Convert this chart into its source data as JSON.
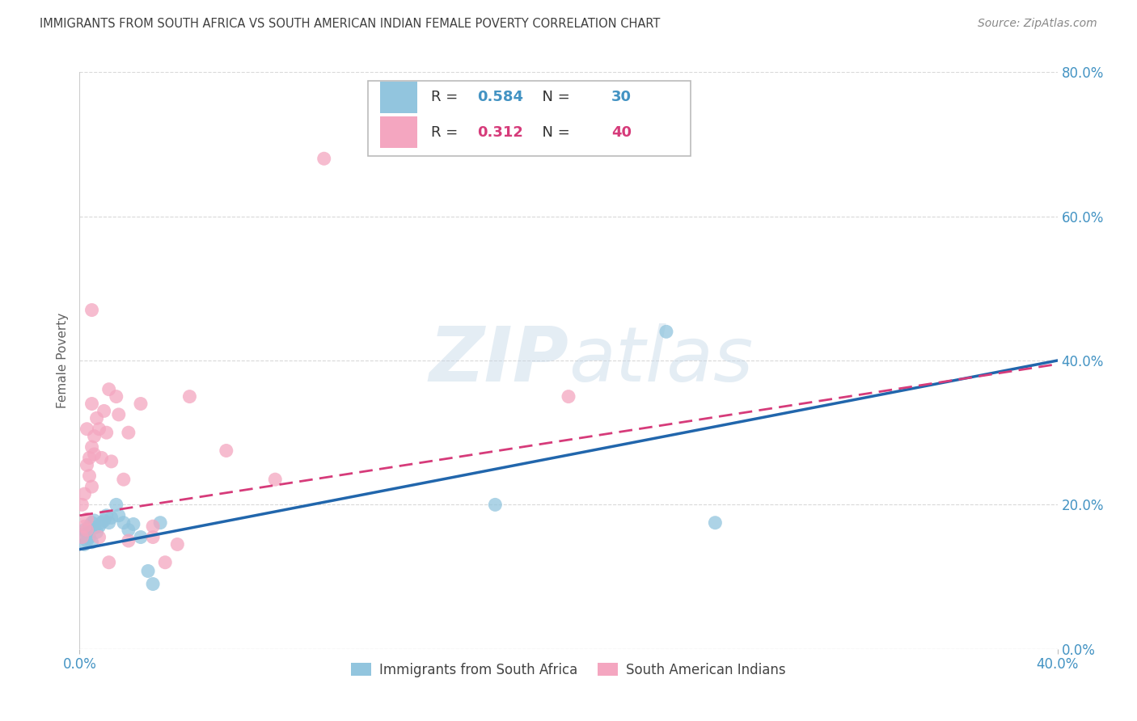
{
  "title": "IMMIGRANTS FROM SOUTH AFRICA VS SOUTH AMERICAN INDIAN FEMALE POVERTY CORRELATION CHART",
  "source": "Source: ZipAtlas.com",
  "ylabel": "Female Poverty",
  "legend_label1": "Immigrants from South Africa",
  "legend_label2": "South American Indians",
  "R1": 0.584,
  "N1": 30,
  "R2": 0.312,
  "N2": 40,
  "color1": "#92c5de",
  "color2": "#f4a6c0",
  "trendline1_color": "#2166ac",
  "trendline2_color": "#d63b7a",
  "xlim": [
    0.0,
    0.4
  ],
  "ylim": [
    0.0,
    0.8
  ],
  "xticks": [
    0.0,
    0.4
  ],
  "xticklabels": [
    "0.0%",
    "40.0%"
  ],
  "yticks": [
    0.0,
    0.2,
    0.4,
    0.6,
    0.8
  ],
  "yticklabels": [
    "0.0%",
    "20.0%",
    "40.0%",
    "60.0%",
    "80.0%"
  ],
  "blue_x": [
    0.001,
    0.002,
    0.002,
    0.003,
    0.003,
    0.004,
    0.004,
    0.005,
    0.005,
    0.006,
    0.006,
    0.007,
    0.008,
    0.009,
    0.01,
    0.011,
    0.012,
    0.013,
    0.015,
    0.016,
    0.018,
    0.02,
    0.022,
    0.025,
    0.028,
    0.03,
    0.033,
    0.17,
    0.24,
    0.26
  ],
  "blue_y": [
    0.155,
    0.145,
    0.165,
    0.15,
    0.16,
    0.155,
    0.17,
    0.148,
    0.175,
    0.168,
    0.178,
    0.162,
    0.17,
    0.175,
    0.178,
    0.185,
    0.175,
    0.182,
    0.2,
    0.185,
    0.175,
    0.165,
    0.173,
    0.155,
    0.108,
    0.09,
    0.175,
    0.2,
    0.44,
    0.175
  ],
  "pink_x": [
    0.001,
    0.001,
    0.002,
    0.002,
    0.003,
    0.003,
    0.003,
    0.004,
    0.004,
    0.005,
    0.005,
    0.005,
    0.006,
    0.006,
    0.007,
    0.008,
    0.009,
    0.01,
    0.011,
    0.012,
    0.013,
    0.015,
    0.016,
    0.018,
    0.02,
    0.025,
    0.03,
    0.03,
    0.035,
    0.04,
    0.045,
    0.06,
    0.08,
    0.1,
    0.2,
    0.003,
    0.008,
    0.012,
    0.02,
    0.005
  ],
  "pink_y": [
    0.155,
    0.2,
    0.215,
    0.17,
    0.165,
    0.255,
    0.305,
    0.24,
    0.265,
    0.225,
    0.28,
    0.34,
    0.27,
    0.295,
    0.32,
    0.305,
    0.265,
    0.33,
    0.3,
    0.36,
    0.26,
    0.35,
    0.325,
    0.235,
    0.3,
    0.34,
    0.155,
    0.17,
    0.12,
    0.145,
    0.35,
    0.275,
    0.235,
    0.68,
    0.35,
    0.18,
    0.155,
    0.12,
    0.15,
    0.47
  ],
  "trendline1_x": [
    0.0,
    0.4
  ],
  "trendline1_y": [
    0.138,
    0.4
  ],
  "trendline2_x": [
    0.0,
    0.4
  ],
  "trendline2_y": [
    0.185,
    0.395
  ],
  "watermark_zip": "ZIP",
  "watermark_atlas": "atlas",
  "background_color": "#ffffff",
  "grid_color": "#d9d9d9",
  "title_color": "#404040",
  "axis_label_color": "#606060",
  "tick_label_color": "#4393c3",
  "source_color": "#888888",
  "legend_R_color": "#333333",
  "legend_val1_color": "#4393c3",
  "legend_val2_color": "#d63b7a"
}
